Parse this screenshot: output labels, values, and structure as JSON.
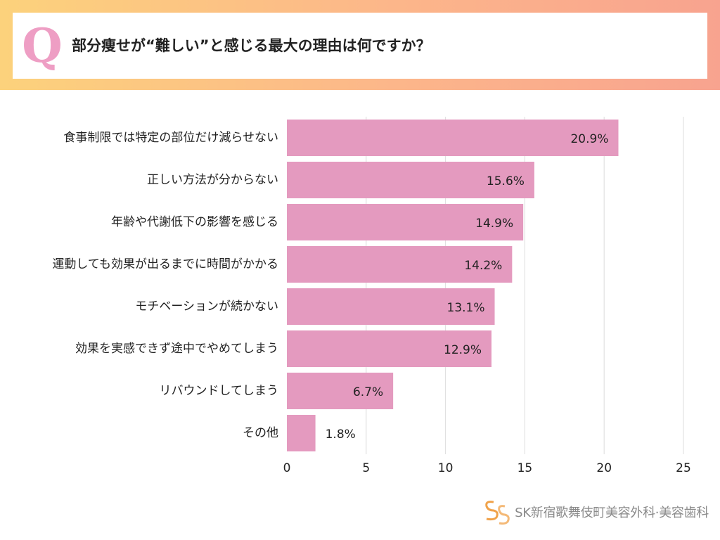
{
  "header": {
    "q_letter": "Q",
    "question": "部分痩せが“難しい”と感じる最大の理由は何ですか？"
  },
  "chart_data": {
    "type": "bar",
    "orientation": "horizontal",
    "categories": [
      "食事制限では特定の部位だけ減らせない",
      "正しい方法が分からない",
      "年齢や代謝低下の影響を感じる",
      "運動しても効果が出るまでに時間がかかる",
      "モチベーションが続かない",
      "効果を実感できず途中でやめてしまう",
      "リバウンドしてしまう",
      "その他"
    ],
    "values": [
      20.9,
      15.6,
      14.9,
      14.2,
      13.1,
      12.9,
      6.7,
      1.8
    ],
    "value_labels": [
      "20.9%",
      "15.6%",
      "14.9%",
      "14.2%",
      "13.1%",
      "12.9%",
      "6.7%",
      "1.8%"
    ],
    "xlim": [
      0,
      25
    ],
    "xticks": [
      0,
      5,
      10,
      15,
      20,
      25
    ],
    "grid": true,
    "bar_color": "#e49abf"
  },
  "logo": {
    "text": "SK新宿歌舞伎町美容外科·美容歯科",
    "mark_color": "#f0a24a"
  }
}
